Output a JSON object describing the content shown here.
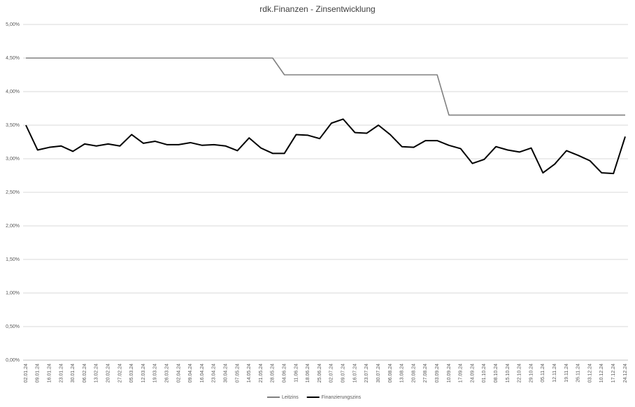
{
  "chart_data": {
    "type": "line",
    "title": "rdk.Finanzen - Zinsentwicklung",
    "categories": [
      "02.01.24",
      "09.01.24",
      "16.01.24",
      "23.01.24",
      "30.01.24",
      "06.02.24",
      "13.02.24",
      "20.02.24",
      "27.02.24",
      "05.03.24",
      "12.03.24",
      "19.03.24",
      "26.03.24",
      "02.04.24",
      "09.04.24",
      "16.04.24",
      "23.04.24",
      "30.04.24",
      "07.05.24",
      "14.05.24",
      "21.05.24",
      "28.05.24",
      "04.06.24",
      "11.06.24",
      "18.06.24",
      "25.06.24",
      "02.07.24",
      "09.07.24",
      "16.07.24",
      "23.07.24",
      "30.07.24",
      "06.08.24",
      "13.08.24",
      "20.08.24",
      "27.08.24",
      "03.09.24",
      "10.09.24",
      "17.09.24",
      "24.09.24",
      "01.10.24",
      "08.10.24",
      "15.10.24",
      "22.10.24",
      "29.10.24",
      "05.11.24",
      "12.11.24",
      "19.11.24",
      "26.11.24",
      "03.12.24",
      "10.12.24",
      "17.12.24",
      "24.12.24"
    ],
    "series": [
      {
        "name": "Leitzins",
        "color": "#808080",
        "values": [
          4.5,
          4.5,
          4.5,
          4.5,
          4.5,
          4.5,
          4.5,
          4.5,
          4.5,
          4.5,
          4.5,
          4.5,
          4.5,
          4.5,
          4.5,
          4.5,
          4.5,
          4.5,
          4.5,
          4.5,
          4.5,
          4.5,
          4.25,
          4.25,
          4.25,
          4.25,
          4.25,
          4.25,
          4.25,
          4.25,
          4.25,
          4.25,
          4.25,
          4.25,
          4.25,
          4.25,
          3.65,
          3.65,
          3.65,
          3.65,
          3.65,
          3.65,
          3.65,
          3.65,
          3.65,
          3.65,
          3.65,
          3.65,
          3.65,
          3.65,
          3.65,
          3.65
        ]
      },
      {
        "name": "Finanzierungszins",
        "color": "#000000",
        "values": [
          3.5,
          3.13,
          3.17,
          3.19,
          3.11,
          3.22,
          3.19,
          3.22,
          3.19,
          3.36,
          3.23,
          3.26,
          3.21,
          3.21,
          3.24,
          3.2,
          3.21,
          3.19,
          3.12,
          3.31,
          3.16,
          3.08,
          3.08,
          3.36,
          3.35,
          3.3,
          3.53,
          3.59,
          3.39,
          3.38,
          3.5,
          3.36,
          3.18,
          3.17,
          3.27,
          3.27,
          3.2,
          3.15,
          2.93,
          2.99,
          3.18,
          3.13,
          3.1,
          3.16,
          2.79,
          2.92,
          3.12,
          3.05,
          2.97,
          2.79,
          2.78,
          3.33
        ]
      }
    ],
    "ylim": [
      0,
      5
    ],
    "yticks": [
      {
        "value": 0,
        "label": "0,00%"
      },
      {
        "value": 0.5,
        "label": "0,50%"
      },
      {
        "value": 1,
        "label": "1,00%"
      },
      {
        "value": 1.5,
        "label": "1,50%"
      },
      {
        "value": 2,
        "label": "2,00%"
      },
      {
        "value": 2.5,
        "label": "2,50%"
      },
      {
        "value": 3,
        "label": "3,00%"
      },
      {
        "value": 3.5,
        "label": "3,50%"
      },
      {
        "value": 4,
        "label": "4,00%"
      },
      {
        "value": 4.5,
        "label": "4,50%"
      },
      {
        "value": 5,
        "label": "5,00%"
      }
    ],
    "grid": true,
    "legend": "bottom"
  }
}
